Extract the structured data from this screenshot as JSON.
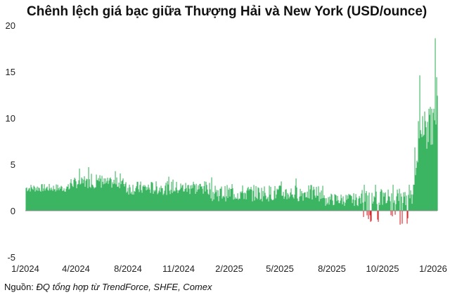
{
  "chart_data": {
    "type": "bar",
    "title": "Chênh lệch giá bạc giữa Thượng Hải và New York (USD/ounce)",
    "xlabel": "",
    "ylabel": "",
    "ylim": [
      -5,
      20
    ],
    "y_ticks": [
      "-5",
      "0",
      "5",
      "10",
      "15",
      "20"
    ],
    "x_ticks": [
      "1/2024",
      "4/2024",
      "8/2024",
      "11/2024",
      "2/2025",
      "5/2025",
      "8/2025",
      "10/2025",
      "1/2026"
    ],
    "grid": false,
    "colors": {
      "positive": "#3cb562",
      "negative": "#d9262b",
      "axis": "#888888"
    },
    "segments": [
      {
        "period": "1/2024 - 4/2024",
        "approx_range": [
          1.8,
          3.0
        ]
      },
      {
        "period": "4/2024 - 8/2024",
        "approx_range": [
          2.3,
          4.7
        ],
        "notable_max": 4.7
      },
      {
        "period": "8/2024 - 2/2025",
        "approx_range": [
          1.5,
          3.7
        ]
      },
      {
        "period": "2/2025 - 8/2025",
        "approx_range": [
          0.8,
          3.5
        ]
      },
      {
        "period": "8/2025 - 9/2025",
        "approx_range": [
          0.3,
          2.2
        ]
      },
      {
        "period": "9/2025 - 11/2025",
        "approx_range": [
          -1.5,
          3.0
        ],
        "notable_min": -1.5
      },
      {
        "period": "11/2025 - 1/2026",
        "approx_range": [
          -0.5,
          18.6
        ],
        "notable_max": 18.6
      }
    ]
  },
  "source": {
    "prefix": "Nguồn: ",
    "detail": "ĐQ tổng hợp từ TrendForce, SHFE, Comex"
  }
}
